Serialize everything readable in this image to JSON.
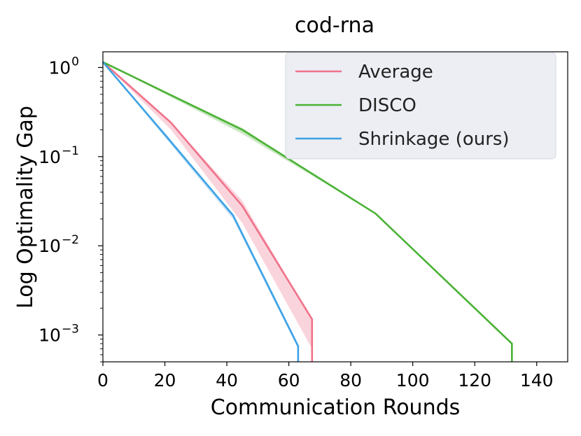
{
  "chart_data": {
    "type": "line",
    "title": "cod-rna",
    "xlabel": "Communication Rounds",
    "ylabel": "Log Optimality Gap",
    "xlim": [
      0,
      150
    ],
    "ylim": [
      0.0005,
      1.5
    ],
    "yscale": "log",
    "grid": false,
    "legend_position": "top-right",
    "x_ticks": [
      {
        "value": 0,
        "label": "0"
      },
      {
        "value": 20,
        "label": "20"
      },
      {
        "value": 40,
        "label": "40"
      },
      {
        "value": 60,
        "label": "60"
      },
      {
        "value": 80,
        "label": "80"
      },
      {
        "value": 100,
        "label": "100"
      },
      {
        "value": 120,
        "label": "120"
      },
      {
        "value": 140,
        "label": "140"
      }
    ],
    "y_ticks": [
      {
        "value": 1,
        "base": "10",
        "exp": "0"
      },
      {
        "value": 0.1,
        "base": "10",
        "exp": "−1"
      },
      {
        "value": 0.01,
        "base": "10",
        "exp": "−2"
      },
      {
        "value": 0.001,
        "base": "10",
        "exp": "−3"
      }
    ],
    "series": [
      {
        "name": "Average",
        "color": "#f0728a",
        "points": [
          [
            0,
            1.15
          ],
          [
            22,
            0.24
          ],
          [
            45,
            0.028
          ],
          [
            67.5,
            0.0015
          ],
          [
            67.5,
            0.0005
          ]
        ],
        "band_upper": [
          [
            0,
            1.15
          ],
          [
            22,
            0.24
          ],
          [
            45,
            0.032
          ],
          [
            67.5,
            0.0015
          ]
        ],
        "band_lower": [
          [
            0,
            1.15
          ],
          [
            22,
            0.2
          ],
          [
            45,
            0.018
          ],
          [
            67.5,
            0.0007
          ]
        ]
      },
      {
        "name": "DISCO",
        "color": "#4bb236",
        "points": [
          [
            0,
            1.15
          ],
          [
            45,
            0.2
          ],
          [
            88,
            0.023
          ],
          [
            132,
            0.0008
          ],
          [
            132,
            0.0005
          ]
        ],
        "band_upper": [
          [
            0,
            1.15
          ],
          [
            45,
            0.21
          ],
          [
            88,
            0.023
          ],
          [
            132,
            0.0008
          ]
        ],
        "band_lower": [
          [
            0,
            1.15
          ],
          [
            45,
            0.18
          ],
          [
            88,
            0.023
          ],
          [
            132,
            0.0008
          ]
        ]
      },
      {
        "name": "Shrinkage (ours)",
        "color": "#3ea2e5",
        "points": [
          [
            0,
            1.15
          ],
          [
            21,
            0.16
          ],
          [
            42,
            0.022
          ],
          [
            63,
            0.00075
          ],
          [
            63,
            0.0005
          ]
        ],
        "band_upper": [
          [
            0,
            1.15
          ],
          [
            21,
            0.17
          ],
          [
            42,
            0.022
          ],
          [
            63,
            0.00075
          ]
        ],
        "band_lower": [
          [
            0,
            1.15
          ],
          [
            21,
            0.15
          ],
          [
            42,
            0.02
          ],
          [
            63,
            0.0007
          ]
        ]
      }
    ]
  },
  "legend": {
    "items": [
      "Average",
      "DISCO",
      "Shrinkage (ours)"
    ]
  }
}
